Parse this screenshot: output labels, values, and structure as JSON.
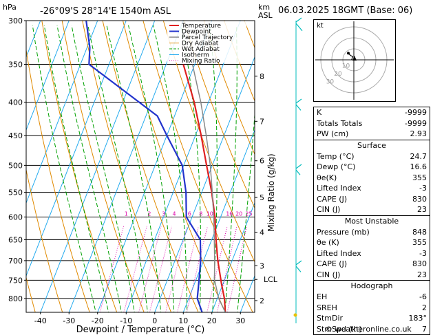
{
  "header": {
    "location": "-26°09'S 28°14'E 1540m ASL",
    "datetime": "06.03.2025 18GMT (Base: 06)"
  },
  "chart_data": {
    "type": "line",
    "title": "",
    "xlabel": "Dewpoint / Temperature (°C)",
    "ylabel": "hPa",
    "km_label": "km",
    "asl_label": "ASL",
    "mixing_label": "Mixing Ratio (g/kg)",
    "x_ticks": [
      -40,
      -30,
      -20,
      -10,
      0,
      10,
      20,
      30
    ],
    "pressure_levels": [
      300,
      350,
      400,
      450,
      500,
      550,
      600,
      650,
      700,
      750,
      800
    ],
    "pressure_range": [
      300,
      840
    ],
    "temp_range": [
      -45,
      35
    ],
    "skew": 40,
    "km_ticks": [
      {
        "p": 365,
        "label": "8"
      },
      {
        "p": 428,
        "label": "7"
      },
      {
        "p": 492,
        "label": "6"
      },
      {
        "p": 560,
        "label": "5"
      },
      {
        "p": 633,
        "label": "4"
      },
      {
        "p": 713,
        "label": "3"
      },
      {
        "p": 806,
        "label": "2"
      }
    ],
    "lcl": {
      "p": 748,
      "label": "LCL"
    },
    "mixing_ratio_labels": [
      "1",
      "2",
      "3",
      "4",
      "6",
      "8",
      "10",
      "16",
      "20",
      "25"
    ],
    "mixing_ratio_values": [
      1,
      2,
      3,
      4,
      6,
      8,
      10,
      16,
      20,
      25
    ],
    "legend": [
      "Temperature",
      "Dewpoint",
      "Parcel Trajectory",
      "Dry Adiabat",
      "Wet Adiabat",
      "Isotherm",
      "Mixing Ratio"
    ],
    "legend_position": "top-left",
    "series": [
      {
        "name": "Temperature",
        "color": "#e02020",
        "points": [
          [
            840,
            24.7
          ],
          [
            800,
            22.5
          ],
          [
            760,
            19.5
          ],
          [
            700,
            15
          ],
          [
            650,
            11.5
          ],
          [
            600,
            8
          ],
          [
            550,
            3.5
          ],
          [
            500,
            -2
          ],
          [
            450,
            -8
          ],
          [
            400,
            -15
          ],
          [
            350,
            -24
          ]
        ]
      },
      {
        "name": "Dewpoint",
        "color": "#2233cc",
        "points": [
          [
            840,
            16.6
          ],
          [
            800,
            13
          ],
          [
            760,
            11.5
          ],
          [
            700,
            9
          ],
          [
            650,
            6
          ],
          [
            600,
            -2
          ],
          [
            550,
            -5.5
          ],
          [
            500,
            -10.5
          ],
          [
            450,
            -20
          ],
          [
            420,
            -26
          ],
          [
            350,
            -57
          ],
          [
            330,
            -59
          ],
          [
            300,
            -64
          ]
        ]
      },
      {
        "name": "Parcel Trajectory",
        "color": "#888888",
        "points": [
          [
            840,
            24.7
          ],
          [
            800,
            20.5
          ],
          [
            748,
            16.4
          ],
          [
            700,
            13.9
          ],
          [
            650,
            10.9
          ],
          [
            600,
            7.6
          ],
          [
            550,
            3.7
          ],
          [
            500,
            -0.7
          ],
          [
            450,
            -6.2
          ],
          [
            400,
            -12.7
          ],
          [
            350,
            -20.8
          ]
        ]
      }
    ]
  },
  "hodograph": {
    "unit_label": "kt",
    "ring_labels": [
      "10",
      "20",
      "30"
    ],
    "points": [
      [
        -2,
        0
      ],
      [
        -1.5,
        1.5
      ],
      [
        -1,
        3
      ],
      [
        -3,
        4
      ],
      [
        -5,
        6
      ]
    ]
  },
  "indices": [
    {
      "label": "K",
      "value": "-9999"
    },
    {
      "label": "Totals Totals",
      "value": "-9999"
    },
    {
      "label": "PW (cm)",
      "value": "2.93"
    }
  ],
  "surface": {
    "title": "Surface",
    "rows": [
      {
        "label": "Temp (°C)",
        "value": "24.7"
      },
      {
        "label": "Dewp (°C)",
        "value": "16.6"
      },
      {
        "label": "θe(K)",
        "value": "355"
      },
      {
        "label": "Lifted Index",
        "value": "-3"
      },
      {
        "label": "CAPE (J)",
        "value": "830"
      },
      {
        "label": "CIN (J)",
        "value": "23"
      }
    ]
  },
  "unstable": {
    "title": "Most Unstable",
    "rows": [
      {
        "label": "Pressure (mb)",
        "value": "848"
      },
      {
        "label": "θe (K)",
        "value": "355"
      },
      {
        "label": "Lifted Index",
        "value": "-3"
      },
      {
        "label": "CAPE (J)",
        "value": "830"
      },
      {
        "label": "CIN (J)",
        "value": "23"
      }
    ]
  },
  "hodo_table": {
    "title": "Hodograph",
    "rows": [
      {
        "label": "EH",
        "value": "-6"
      },
      {
        "label": "SREH",
        "value": "2"
      },
      {
        "label": "StmDir",
        "value": "183°"
      },
      {
        "label": "StmSpd (kt)",
        "value": "7"
      }
    ]
  },
  "footer": "© weatheronline.co.uk",
  "colors": {
    "temperature": "#e02020",
    "dewpoint": "#2233cc",
    "parcel": "#888888",
    "dry_adiabat": "#e08a00",
    "wet_adiabat": "#00a000",
    "isotherm": "#22aaee",
    "mixing_ratio": "#dd00aa",
    "wind_barb": "#00bbbb"
  }
}
